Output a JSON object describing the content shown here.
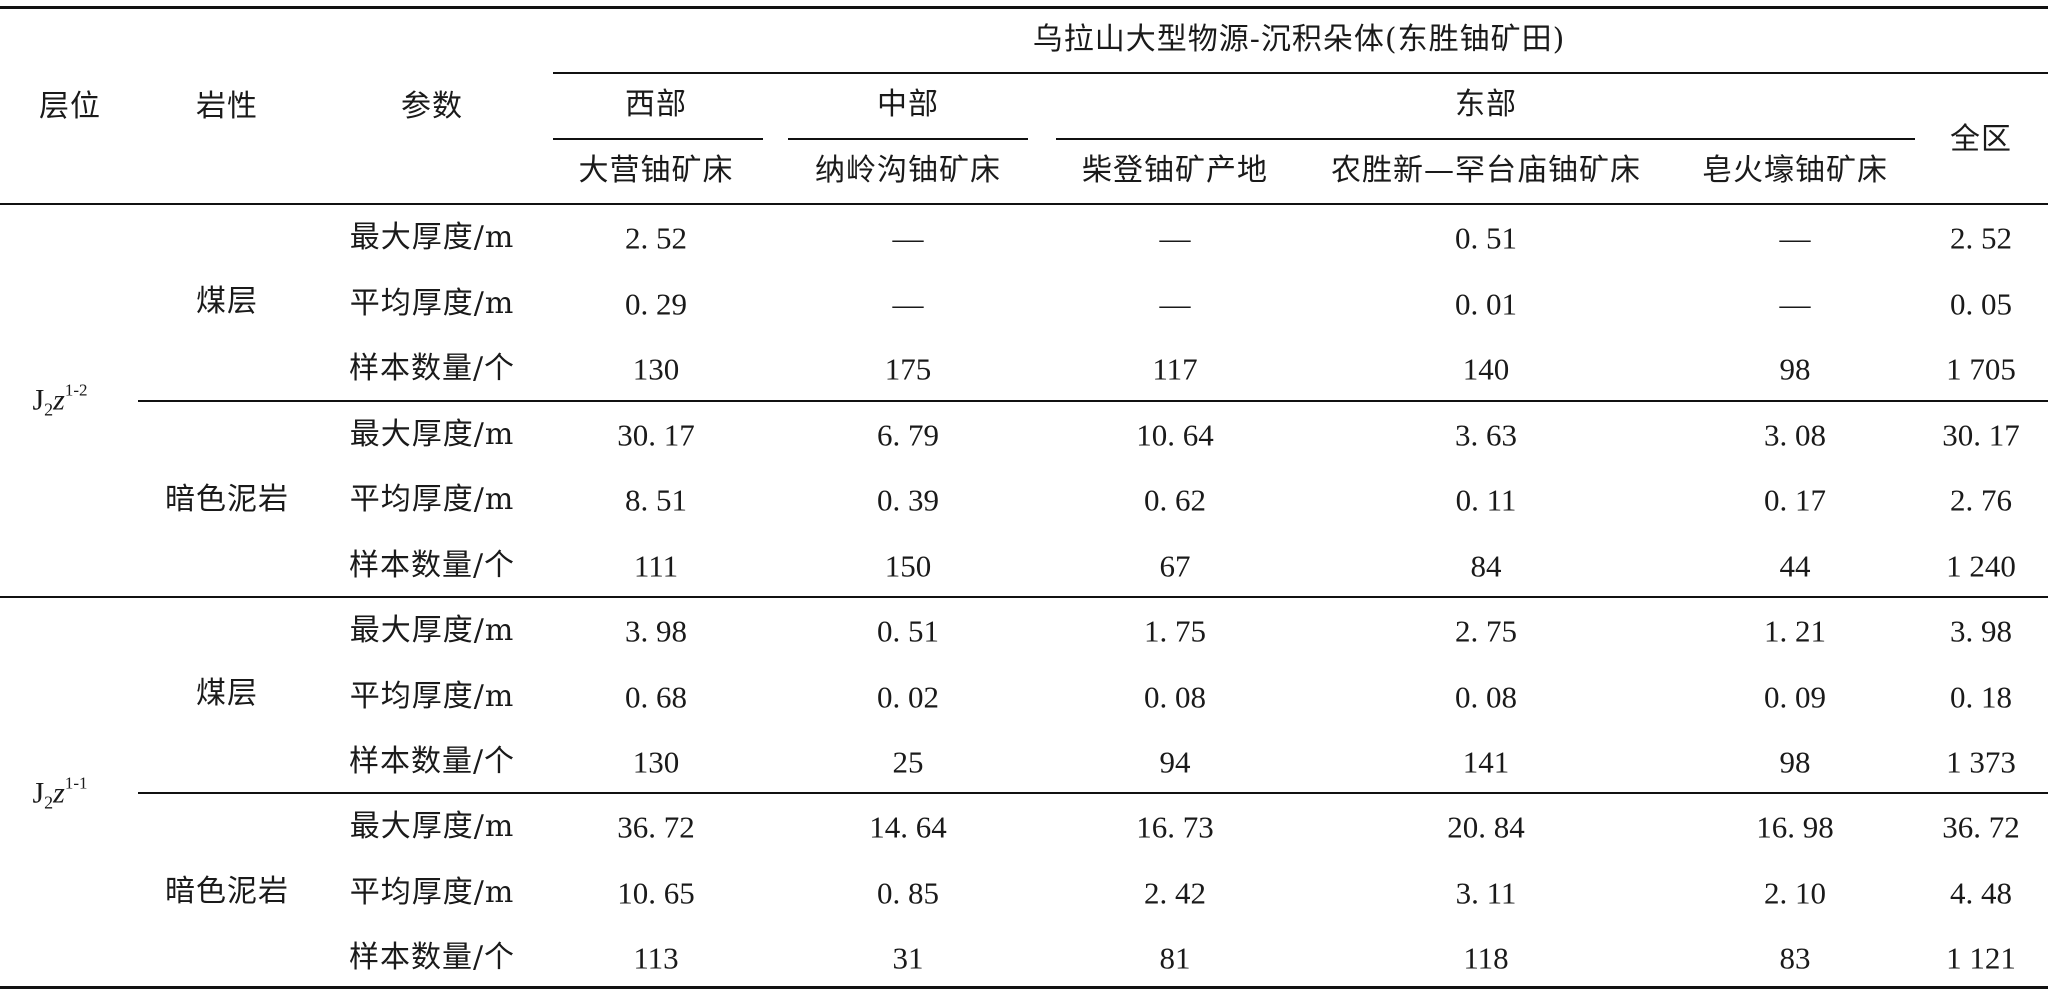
{
  "header": {
    "col_layer": "层位",
    "col_lithology": "岩性",
    "col_param": "参数",
    "group_title": "乌拉山大型物源-沉积朵体(东胜铀矿田)",
    "west": "西部",
    "middle": "中部",
    "east": "东部",
    "total": "全区",
    "deposit_1": "大营铀矿床",
    "deposit_2": "纳岭沟铀矿床",
    "deposit_3": "柴登铀矿产地",
    "deposit_4": "农胜新—罕台庙铀矿床",
    "deposit_5": "皂火壕铀矿床"
  },
  "layers": [
    {
      "symbol_base": "J",
      "symbol_sub": "2",
      "symbol_var": "z",
      "symbol_sup": "1-2",
      "lithologies": [
        {
          "name": "煤层",
          "rows": [
            {
              "param": "最大厚度/m",
              "values": [
                "2. 52",
                "—",
                "—",
                "0. 51",
                "—",
                "2. 52"
              ]
            },
            {
              "param": "平均厚度/m",
              "values": [
                "0. 29",
                "—",
                "—",
                "0. 01",
                "—",
                "0. 05"
              ]
            },
            {
              "param": "样本数量/个",
              "values": [
                "130",
                "175",
                "117",
                "140",
                "98",
                "1 705"
              ]
            }
          ]
        },
        {
          "name": "暗色泥岩",
          "rows": [
            {
              "param": "最大厚度/m",
              "values": [
                "30. 17",
                "6. 79",
                "10. 64",
                "3. 63",
                "3. 08",
                "30. 17"
              ]
            },
            {
              "param": "平均厚度/m",
              "values": [
                "8. 51",
                "0. 39",
                "0. 62",
                "0. 11",
                "0. 17",
                "2. 76"
              ]
            },
            {
              "param": "样本数量/个",
              "values": [
                "111",
                "150",
                "67",
                "84",
                "44",
                "1 240"
              ]
            }
          ]
        }
      ]
    },
    {
      "symbol_base": "J",
      "symbol_sub": "2",
      "symbol_var": "z",
      "symbol_sup": "1-1",
      "lithologies": [
        {
          "name": "煤层",
          "rows": [
            {
              "param": "最大厚度/m",
              "values": [
                "3. 98",
                "0. 51",
                "1. 75",
                "2. 75",
                "1. 21",
                "3. 98"
              ]
            },
            {
              "param": "平均厚度/m",
              "values": [
                "0. 68",
                "0. 02",
                "0. 08",
                "0. 08",
                "0. 09",
                "0. 18"
              ]
            },
            {
              "param": "样本数量/个",
              "values": [
                "130",
                "25",
                "94",
                "141",
                "98",
                "1 373"
              ]
            }
          ]
        },
        {
          "name": "暗色泥岩",
          "rows": [
            {
              "param": "最大厚度/m",
              "values": [
                "36. 72",
                "14. 64",
                "16. 73",
                "20. 84",
                "16. 98",
                "36. 72"
              ]
            },
            {
              "param": "平均厚度/m",
              "values": [
                "10. 65",
                "0. 85",
                "2. 42",
                "3. 11",
                "2. 10",
                "4. 48"
              ]
            },
            {
              "param": "样本数量/个",
              "values": [
                "113",
                "31",
                "81",
                "118",
                "83",
                "1 121"
              ]
            }
          ]
        }
      ]
    }
  ]
}
